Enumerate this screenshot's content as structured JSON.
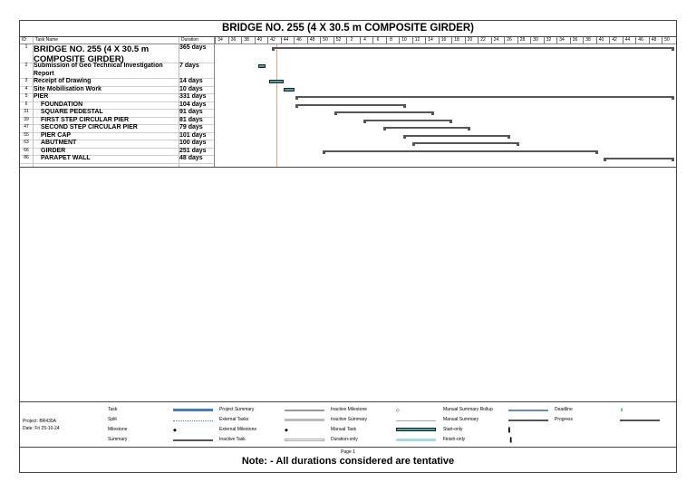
{
  "title": "BRIDGE NO. 255 (4 X 30.5 m COMPOSITE GIRDER)",
  "header": {
    "id": "ID",
    "task_name": "Task Name",
    "duration": "Duration"
  },
  "timescale": [
    "34",
    "36",
    "38",
    "40",
    "42",
    "44",
    "46",
    "48",
    "50",
    "52",
    "2",
    "4",
    "6",
    "8",
    "10",
    "12",
    "14",
    "16",
    "18",
    "20",
    "22",
    "24",
    "26",
    "28",
    "30",
    "32",
    "34",
    "36",
    "38",
    "40",
    "42",
    "44",
    "46",
    "48",
    "50"
  ],
  "tasks": [
    {
      "id": "1",
      "name": "BRIDGE NO. 255 (4 X 30.5 m COMPOSITE GIRDER)",
      "duration": "365 days"
    },
    {
      "id": "2",
      "name": "Submission of Geo Technical Investigation Report",
      "duration": "7 days"
    },
    {
      "id": "3",
      "name": "Receipt of Drawing",
      "duration": "14 days"
    },
    {
      "id": "4",
      "name": "Site Mobilisation Work",
      "duration": "10 days"
    },
    {
      "id": "5",
      "name": "PIER",
      "duration": "331 days"
    },
    {
      "id": "6",
      "name": "FOUNDATION",
      "duration": "104 days"
    },
    {
      "id": "31",
      "name": "SQUARE PEDESTAL",
      "duration": "91 days"
    },
    {
      "id": "39",
      "name": "FIRST STEP CIRCULAR PIER",
      "duration": "81 days"
    },
    {
      "id": "47",
      "name": "SECOND STEP CIRCULAR PIER",
      "duration": "79 days"
    },
    {
      "id": "55",
      "name": "PIER CAP",
      "duration": "101 days"
    },
    {
      "id": "63",
      "name": "ABUTMENT",
      "duration": "100 days"
    },
    {
      "id": "66",
      "name": "GIRDER",
      "duration": "251 days"
    },
    {
      "id": "86",
      "name": "PARAPET WALL",
      "duration": "48 days"
    }
  ],
  "legend": {
    "project": "Project: BR435A",
    "date": "Date: Fri 25-10-24",
    "items": [
      "Task",
      "Split",
      "Milestone",
      "Summary",
      "Project Summary",
      "External Tasks",
      "External Milestone",
      "Inactive Task",
      "Inactive Milestone",
      "Inactive Summary",
      "Manual Task",
      "Duration-only",
      "Manual Summary Rollup",
      "Manual Summary",
      "Start-only",
      "Finish-only",
      "Deadline",
      "Progress"
    ]
  },
  "colors": {
    "manual_task": "#43a3a8",
    "task": "#4a7abf",
    "deadline": "#2e9d3a",
    "today_line": "#e8a080"
  },
  "page_label": "Page 1",
  "note": "Note: - All durations considered are tentative"
}
